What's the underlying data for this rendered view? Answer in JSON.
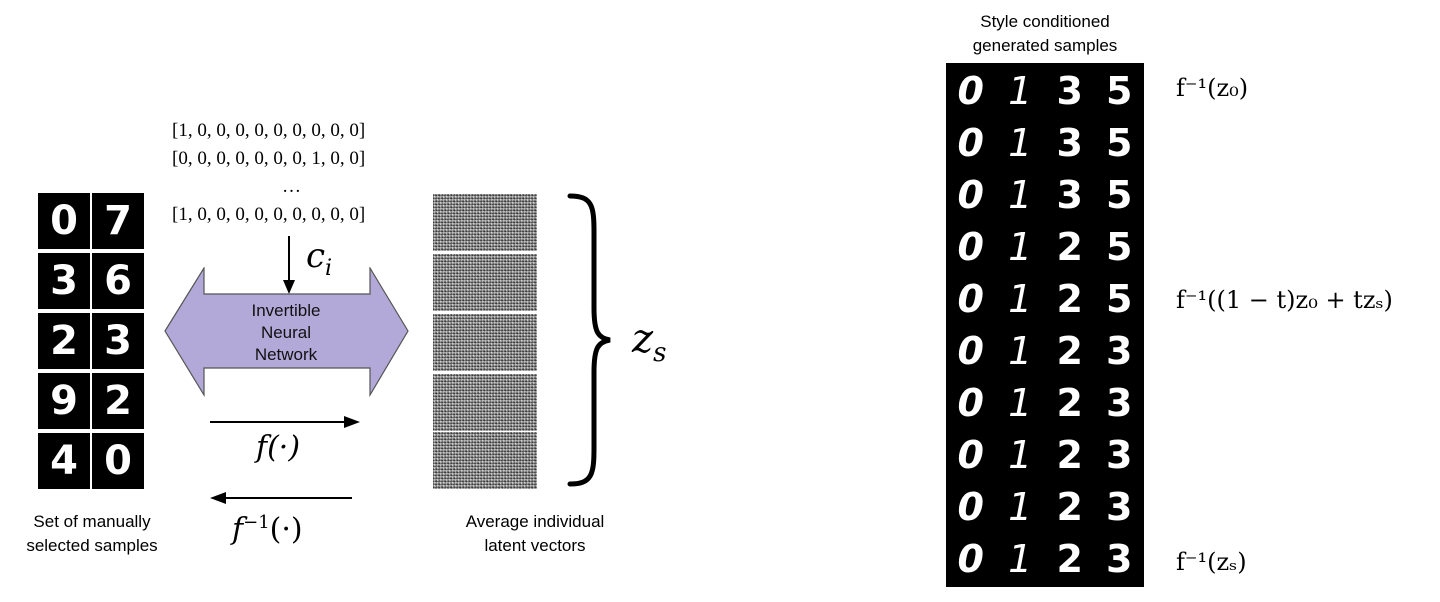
{
  "left_panel": {
    "sample_digits": [
      [
        "0",
        "7"
      ],
      [
        "3",
        "6"
      ],
      [
        "2",
        "3"
      ],
      [
        "9",
        "2"
      ],
      [
        "4",
        "0"
      ]
    ],
    "sample_caption_line1": "Set of manually",
    "sample_caption_line2": "selected samples",
    "condition_vectors": [
      "[1, 0, 0, 0, 0, 0, 0, 0, 0, 0]",
      "[0, 0, 0, 0, 0, 0, 0, 1, 0, 0]",
      "…",
      "[1, 0, 0, 0, 0, 0, 0, 0, 0, 0]"
    ],
    "condition_symbol": "c",
    "condition_subscript": "i",
    "inn_label_line1": "Invertible",
    "inn_label_line2": "Neural",
    "inn_label_line3": "Network",
    "inn_color": "#b3a9d8",
    "forward_label": "f(·)",
    "inverse_label_base": "f",
    "inverse_label_sup": "−1",
    "inverse_label_arg": "(·)",
    "latent_caption_line1": "Average individual",
    "latent_caption_line2": "latent vectors",
    "latent_symbol": "z",
    "latent_subscript": "s"
  },
  "right_panel": {
    "title_line1": "Style conditioned",
    "title_line2": "generated samples",
    "generated_digits": [
      [
        "0",
        "1",
        "3",
        "5"
      ],
      [
        "0",
        "1",
        "3",
        "5"
      ],
      [
        "0",
        "1",
        "3",
        "5"
      ],
      [
        "0",
        "1",
        "2",
        "5"
      ],
      [
        "0",
        "1",
        "2",
        "5"
      ],
      [
        "0",
        "1",
        "2",
        "3"
      ],
      [
        "0",
        "1",
        "2",
        "3"
      ],
      [
        "0",
        "1",
        "2",
        "3"
      ],
      [
        "0",
        "1",
        "2",
        "3"
      ],
      [
        "0",
        "1",
        "2",
        "3"
      ]
    ],
    "label_top": "f⁻¹(z₀)",
    "label_middle": "f⁻¹((1 − t)z₀ + tzₛ)",
    "label_bottom": "f⁻¹(zₛ)"
  }
}
